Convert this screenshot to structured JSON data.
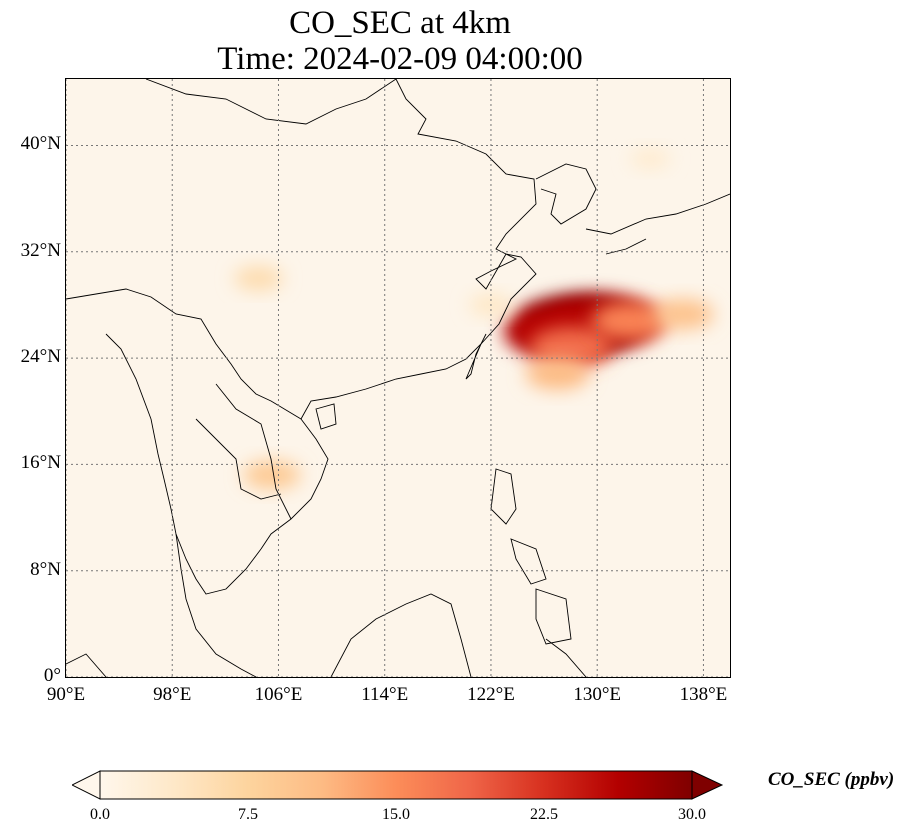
{
  "title": {
    "line1": "CO_SEC at 4km",
    "line2": "Time: 2024-02-09 04:00:00"
  },
  "map": {
    "lon_range": [
      90,
      140
    ],
    "lat_range": [
      0,
      45
    ],
    "lat_ticks": [
      {
        "value": 40,
        "label": "40°N"
      },
      {
        "value": 32,
        "label": "32°N"
      },
      {
        "value": 24,
        "label": "24°N"
      },
      {
        "value": 16,
        "label": "16°N"
      },
      {
        "value": 8,
        "label": "8°N"
      },
      {
        "value": 0,
        "label": "0°"
      }
    ],
    "lon_ticks": [
      {
        "value": 90,
        "label": "90°E"
      },
      {
        "value": 98,
        "label": "98°E"
      },
      {
        "value": 106,
        "label": "106°E"
      },
      {
        "value": 114,
        "label": "114°E"
      },
      {
        "value": 122,
        "label": "122°E"
      },
      {
        "value": 130,
        "label": "130°E"
      },
      {
        "value": 138,
        "label": "138°E"
      }
    ],
    "gridlines": "dotted grey",
    "plumes": [
      {
        "lon": 128.5,
        "lat": 26.5,
        "level": 30
      },
      {
        "lon": 130.5,
        "lat": 26.7,
        "level": 27
      },
      {
        "lon": 127.0,
        "lat": 26.0,
        "level": 26
      },
      {
        "lon": 128.0,
        "lat": 24.8,
        "level": 18
      },
      {
        "lon": 132.5,
        "lat": 26.8,
        "level": 16
      },
      {
        "lon": 127.0,
        "lat": 22.8,
        "level": 11
      },
      {
        "lon": 136.5,
        "lat": 27.3,
        "level": 10
      },
      {
        "lon": 104.5,
        "lat": 30.0,
        "level": 6
      },
      {
        "lon": 105.5,
        "lat": 15.2,
        "level": 9
      },
      {
        "lon": 122.0,
        "lat": 28.0,
        "level": 4
      },
      {
        "lon": 134.0,
        "lat": 39.0,
        "level": 3
      }
    ]
  },
  "colorbar": {
    "label": "CO_SEC (ppbv)",
    "min": 0,
    "max": 30,
    "extend": "both",
    "colors": [
      "#fff7ec",
      "#fee8c8",
      "#fdd49e",
      "#fdbb84",
      "#fc8d59",
      "#ef6548",
      "#d7301f",
      "#b30000",
      "#7f0000"
    ],
    "ticks": [
      {
        "value": 0,
        "label": "0.0"
      },
      {
        "value": 7.5,
        "label": "7.5"
      },
      {
        "value": 15,
        "label": "15.0"
      },
      {
        "value": 22.5,
        "label": "22.5"
      },
      {
        "value": 30,
        "label": "30.0"
      }
    ]
  }
}
